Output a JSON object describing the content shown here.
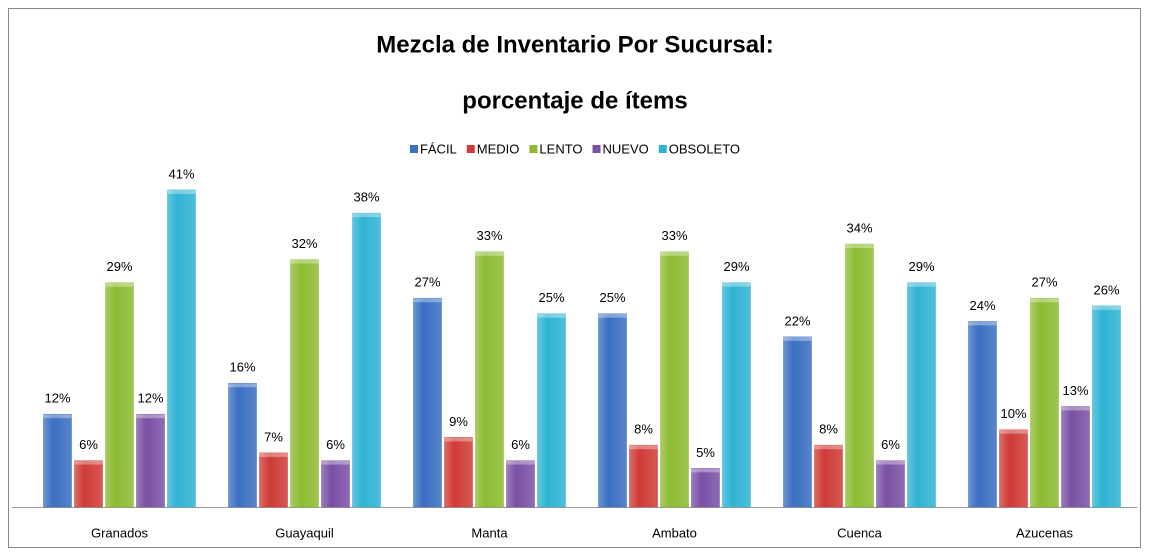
{
  "chart_data": {
    "type": "bar",
    "title": [
      "Mezcla de Inventario Por Sucursal:",
      "porcentaje de ítems"
    ],
    "categories": [
      "Granados",
      "Guayaquil",
      "Manta",
      "Ambato",
      "Cuenca",
      "Azucenas"
    ],
    "ylim": [
      0,
      45
    ],
    "legend": "top",
    "series": [
      {
        "name": "FÁCIL",
        "color": "#3a6fc1",
        "values": [
          12,
          16,
          27,
          25,
          22,
          24
        ],
        "value_labels": [
          "12%",
          "16%",
          "27%",
          "25%",
          "22%",
          "24%"
        ]
      },
      {
        "name": "MEDIO",
        "color": "#cf3b36",
        "values": [
          6,
          7,
          9,
          8,
          8,
          10
        ],
        "value_labels": [
          "6%",
          "7%",
          "9%",
          "8%",
          "8%",
          "10%"
        ]
      },
      {
        "name": "LENTO",
        "color": "#8dbb32",
        "values": [
          29,
          32,
          33,
          33,
          34,
          27
        ],
        "value_labels": [
          "29%",
          "32%",
          "33%",
          "33%",
          "34%",
          "27%"
        ]
      },
      {
        "name": "NUEVO",
        "color": "#7a50a5",
        "values": [
          12,
          6,
          6,
          5,
          6,
          13
        ],
        "value_labels": [
          "12%",
          "6%",
          "6%",
          "5%",
          "6%",
          "13%"
        ]
      },
      {
        "name": "OBSOLETO",
        "color": "#2fb3d3",
        "values": [
          41,
          38,
          25,
          29,
          29,
          26
        ],
        "value_labels": [
          "41%",
          "38%",
          "25%",
          "29%",
          "29%",
          "26%"
        ]
      }
    ]
  }
}
